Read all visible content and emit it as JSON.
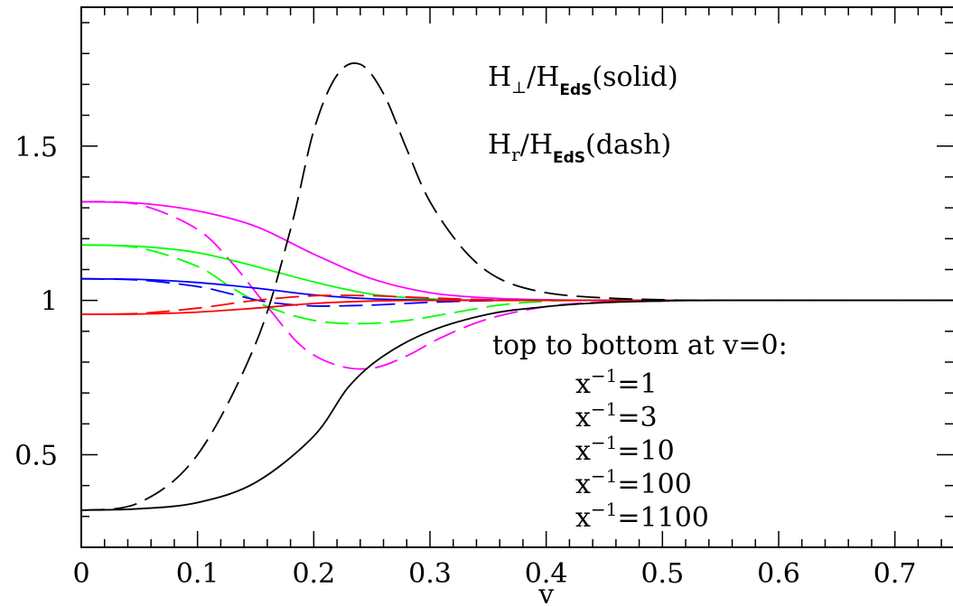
{
  "chart_data": {
    "type": "line",
    "title": "",
    "xlabel": "v",
    "ylabel": "",
    "xlim": [
      0,
      0.75
    ],
    "ylim": [
      0.2,
      1.95
    ],
    "x_ticks": [
      "0",
      "0.1",
      "0.2",
      "0.3",
      "0.4",
      "0.5",
      "0.6",
      "0.7"
    ],
    "y_ticks": [
      "0.5",
      "1",
      "1.5"
    ],
    "grid": false,
    "annotations": {
      "solid_main": "H",
      "solid_sym": "⊥",
      "solid_frac": "/H",
      "solid_sub": "EdS",
      "solid_note": "(solid)",
      "dash_main": "H",
      "dash_sym": "r",
      "dash_frac": "/H",
      "dash_sub": "EdS",
      "dash_note": "(dash)",
      "legend_title": "top to bottom at v=0:",
      "legend_items": [
        {
          "base": "x",
          "sup": "−1",
          "rest": "=1"
        },
        {
          "base": "x",
          "sup": "−1",
          "rest": "=3"
        },
        {
          "base": "x",
          "sup": "−1",
          "rest": "=10"
        },
        {
          "base": "x",
          "sup": "−1",
          "rest": "=100"
        },
        {
          "base": "x",
          "sup": "−1",
          "rest": "=1100"
        }
      ]
    },
    "series": [
      {
        "style": "solid",
        "color": "#ff00ff",
        "x": [
          0,
          0.05,
          0.1,
          0.15,
          0.2,
          0.25,
          0.3,
          0.35,
          0.4,
          0.45,
          0.5,
          0.75
        ],
        "y": [
          1.32,
          1.315,
          1.29,
          1.24,
          1.15,
          1.07,
          1.025,
          1.008,
          1.002,
          1.0,
          1.0,
          1.0
        ]
      },
      {
        "style": "dash",
        "color": "#ff00ff",
        "x": [
          0,
          0.05,
          0.1,
          0.13,
          0.16,
          0.19,
          0.22,
          0.25,
          0.28,
          0.31,
          0.35,
          0.4,
          0.45,
          0.5,
          0.75
        ],
        "y": [
          1.32,
          1.31,
          1.23,
          1.12,
          0.98,
          0.85,
          0.79,
          0.78,
          0.82,
          0.88,
          0.94,
          0.98,
          0.995,
          1.0,
          1.0
        ]
      },
      {
        "style": "solid",
        "color": "#00ff00",
        "x": [
          0,
          0.05,
          0.1,
          0.15,
          0.2,
          0.25,
          0.3,
          0.35,
          0.4,
          0.75
        ],
        "y": [
          1.18,
          1.175,
          1.155,
          1.11,
          1.06,
          1.02,
          1.005,
          1.0,
          1.0,
          1.0
        ]
      },
      {
        "style": "dash",
        "color": "#00ff00",
        "x": [
          0,
          0.05,
          0.1,
          0.13,
          0.16,
          0.2,
          0.24,
          0.28,
          0.32,
          0.36,
          0.4,
          0.45,
          0.75
        ],
        "y": [
          1.18,
          1.17,
          1.11,
          1.04,
          0.98,
          0.935,
          0.925,
          0.935,
          0.96,
          0.985,
          0.997,
          1.0,
          1.0
        ]
      },
      {
        "style": "solid",
        "color": "#0000ff",
        "x": [
          0,
          0.05,
          0.1,
          0.15,
          0.2,
          0.25,
          0.3,
          0.35,
          0.75
        ],
        "y": [
          1.07,
          1.068,
          1.058,
          1.04,
          1.018,
          1.005,
          1.001,
          1.0,
          1.0
        ]
      },
      {
        "style": "dash",
        "color": "#0000ff",
        "x": [
          0,
          0.05,
          0.1,
          0.13,
          0.16,
          0.2,
          0.25,
          0.3,
          0.35,
          0.4,
          0.75
        ],
        "y": [
          1.07,
          1.066,
          1.045,
          1.02,
          0.995,
          0.982,
          0.985,
          0.994,
          0.999,
          1.0,
          1.0
        ]
      },
      {
        "style": "solid",
        "color": "#ff0000",
        "x": [
          0,
          0.05,
          0.1,
          0.15,
          0.2,
          0.25,
          0.3,
          0.35,
          0.75
        ],
        "y": [
          0.955,
          0.956,
          0.962,
          0.975,
          0.99,
          0.998,
          1.0,
          1.0,
          1.0
        ]
      },
      {
        "style": "dash",
        "color": "#ff0000",
        "x": [
          0,
          0.05,
          0.1,
          0.15,
          0.2,
          0.25,
          0.3,
          0.35,
          0.4,
          0.75
        ],
        "y": [
          0.955,
          0.958,
          0.975,
          1.0,
          1.015,
          1.015,
          1.008,
          1.002,
          1.0,
          1.0
        ]
      },
      {
        "style": "solid",
        "color": "#000000",
        "x": [
          0,
          0.05,
          0.1,
          0.15,
          0.2,
          0.23,
          0.26,
          0.3,
          0.35,
          0.4,
          0.45,
          0.5,
          0.55,
          0.75
        ],
        "y": [
          0.32,
          0.325,
          0.345,
          0.41,
          0.56,
          0.72,
          0.82,
          0.9,
          0.955,
          0.98,
          0.993,
          0.998,
          1.0,
          1.0
        ]
      },
      {
        "style": "dash",
        "color": "#000000",
        "x": [
          0,
          0.05,
          0.1,
          0.15,
          0.18,
          0.2,
          0.22,
          0.24,
          0.26,
          0.28,
          0.3,
          0.33,
          0.36,
          0.4,
          0.45,
          0.5,
          0.55,
          0.75
        ],
        "y": [
          0.32,
          0.345,
          0.5,
          0.86,
          1.23,
          1.55,
          1.73,
          1.765,
          1.67,
          1.49,
          1.32,
          1.16,
          1.07,
          1.025,
          1.008,
          1.002,
          1.0,
          1.0
        ]
      }
    ]
  }
}
